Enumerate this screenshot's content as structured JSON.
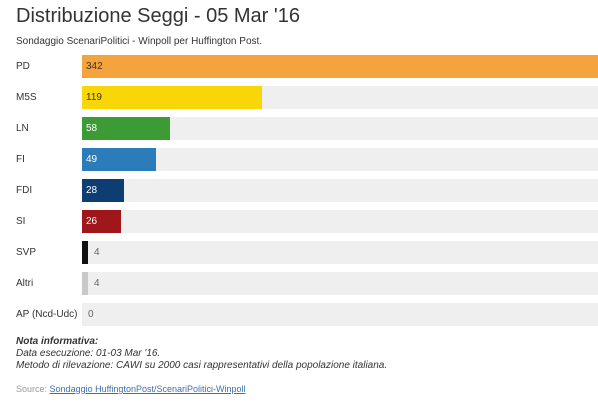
{
  "title": "Distribuzione Seggi - 05 Mar '16",
  "subtitle": "Sondaggio ScenariPolitici - Winpoll per Huffington Post.",
  "chart_data": {
    "type": "bar",
    "orientation": "horizontal",
    "categories": [
      "PD",
      "M5S",
      "LN",
      "FI",
      "FDI",
      "SI",
      "SVP",
      "Altri",
      "AP (Ncd-Udc)"
    ],
    "values": [
      342,
      119,
      58,
      49,
      28,
      26,
      4,
      4,
      0
    ],
    "colors": [
      "#f5a33d",
      "#f9d608",
      "#3d9b36",
      "#2b7cb8",
      "#0e3d73",
      "#a0171b",
      "#111111",
      "#c9c9c9",
      "#c9c9c9"
    ],
    "value_label_colors": [
      "#333333",
      "#333333",
      "#ffffff",
      "#ffffff",
      "#ffffff",
      "#ffffff",
      "#666666",
      "#666666",
      "#666666"
    ],
    "xlim": [
      0,
      342
    ],
    "grid": false,
    "legend": "none"
  },
  "note": {
    "title": "Nota informativa:",
    "line1": "Data esecuzione: 01-03 Mar '16.",
    "line2": "Metodo di rilevazione: CAWI su 2000 casi rappresentativi della popolazione italiana."
  },
  "source": {
    "label": "Source:",
    "link_text": "Sondaggio HuffingtonPost/ScenariPolitici-Winpoll"
  }
}
